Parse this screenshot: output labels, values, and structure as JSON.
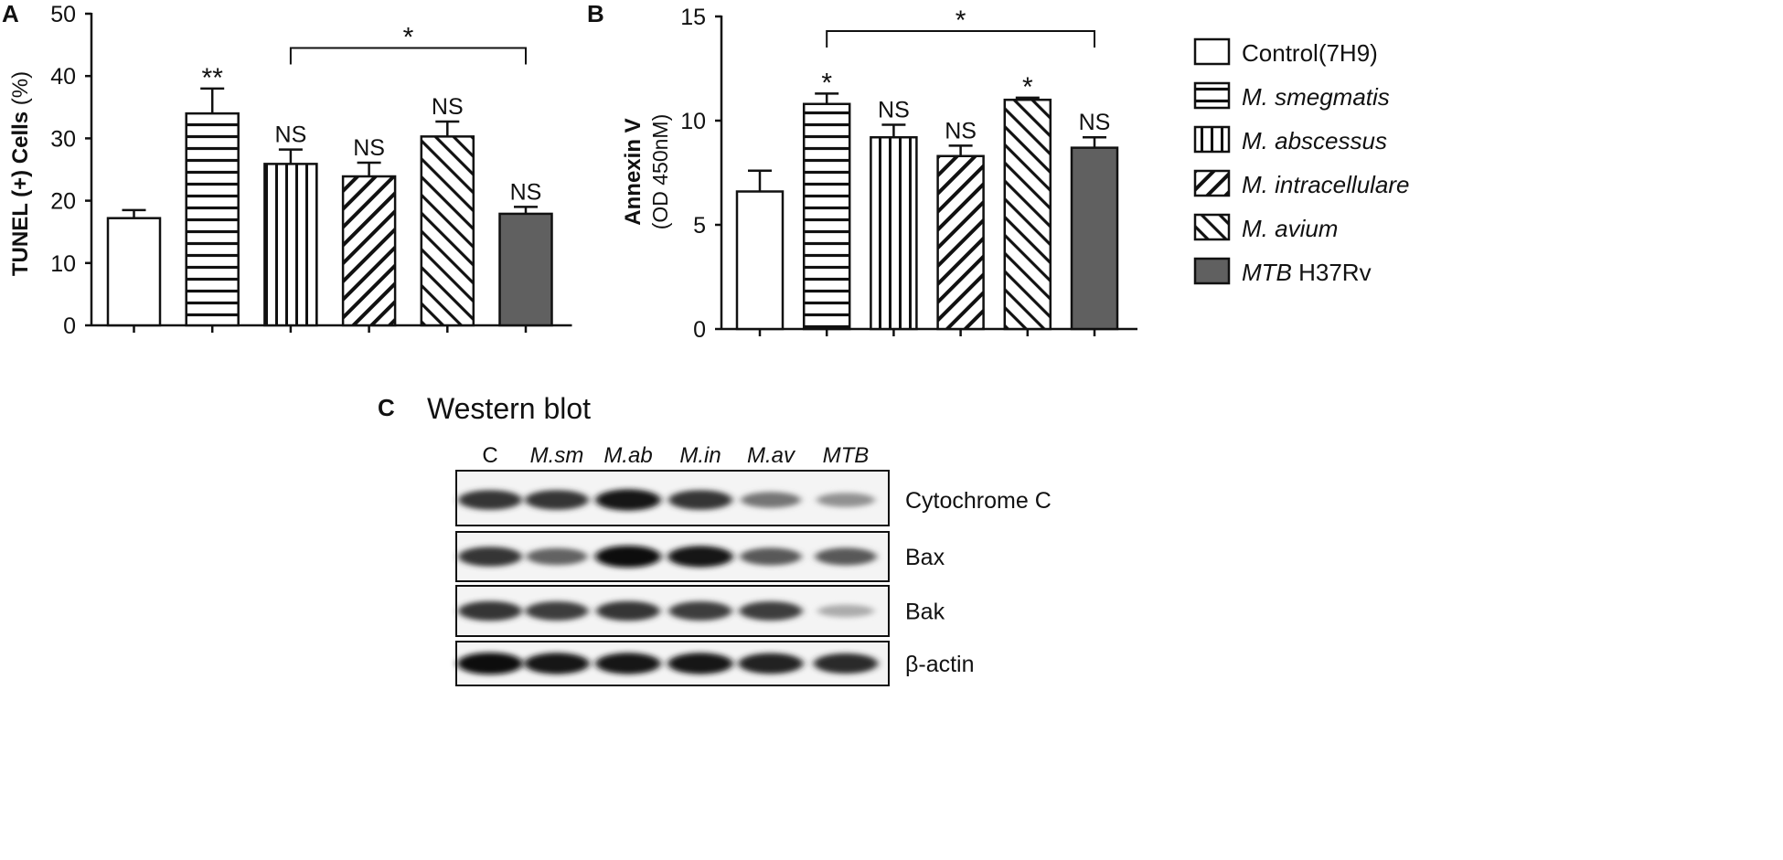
{
  "panels": {
    "a": {
      "letter": "A"
    },
    "b": {
      "letter": "B"
    },
    "c": {
      "letter": "C",
      "title": "Western blot"
    }
  },
  "legend": {
    "items": [
      {
        "italic": "",
        "text": "Control(7H9)",
        "pattern": "empty"
      },
      {
        "italic": "M. smegmatis",
        "text": "",
        "pattern": "hlines"
      },
      {
        "italic": "M. abscessus",
        "text": "",
        "pattern": "vlines"
      },
      {
        "italic": "M. intracellulare",
        "text": "",
        "pattern": "diag-right"
      },
      {
        "italic": "M. avium",
        "text": "",
        "pattern": "diag-left"
      },
      {
        "italic": "MTB",
        "text": " H37Rv",
        "pattern": "solid"
      }
    ]
  },
  "colors": {
    "solid_bar": "#606060",
    "outline": "#111111"
  },
  "chart_data": [
    {
      "type": "bar",
      "ylabel_bold": "TUNEL (+) Cells",
      "ylabel_unit": " (%)",
      "xlabel": "",
      "ylim": [
        0,
        50
      ],
      "yticks": [
        "0",
        "10",
        "20",
        "30",
        "40",
        "50"
      ],
      "values": [
        17.2,
        34.0,
        25.9,
        23.9,
        30.3,
        17.9
      ],
      "errors": [
        1.3,
        4.0,
        2.3,
        2.2,
        2.4,
        1.1
      ],
      "labels": [
        "",
        "**",
        "NS",
        "NS",
        "NS",
        "NS"
      ],
      "patterns": [
        "empty",
        "hlines",
        "vlines",
        "diag-right",
        "diag-left",
        "solid"
      ],
      "bracket": {
        "from": 2,
        "to": 5,
        "value": 44.5,
        "label": "*"
      }
    },
    {
      "type": "bar",
      "ylabel_bold": "Annexin V",
      "ylabel_unit": "(OD 450nM)",
      "xlabel": "",
      "ylim": [
        0,
        15
      ],
      "yticks": [
        "0",
        "5",
        "10",
        "15"
      ],
      "values": [
        6.6,
        10.8,
        9.2,
        8.3,
        11.0,
        8.7
      ],
      "errors": [
        1.0,
        0.5,
        0.6,
        0.5,
        0.1,
        0.5
      ],
      "labels": [
        "",
        "*",
        "NS",
        "NS",
        "*",
        "NS"
      ],
      "patterns": [
        "empty",
        "hlines",
        "vlines",
        "diag-right",
        "diag-left",
        "solid"
      ],
      "bracket": {
        "from": 1,
        "to": 5,
        "value": 14.3,
        "label": "*"
      }
    }
  ],
  "western_blot": {
    "lanes": [
      "C",
      "M.sm",
      "M.ab",
      "M.in",
      "M.av",
      "MTB"
    ],
    "rows": [
      {
        "label": "Cytochrome C",
        "intensity": [
          0.8,
          0.8,
          0.95,
          0.8,
          0.45,
          0.3
        ]
      },
      {
        "label": "Bax",
        "intensity": [
          0.8,
          0.55,
          1.0,
          0.95,
          0.6,
          0.6
        ]
      },
      {
        "label": "Bak",
        "intensity": [
          0.8,
          0.75,
          0.8,
          0.75,
          0.75,
          0.15
        ]
      },
      {
        "label": "β-actin",
        "intensity": [
          1.0,
          0.95,
          0.95,
          0.95,
          0.9,
          0.85
        ]
      }
    ]
  }
}
